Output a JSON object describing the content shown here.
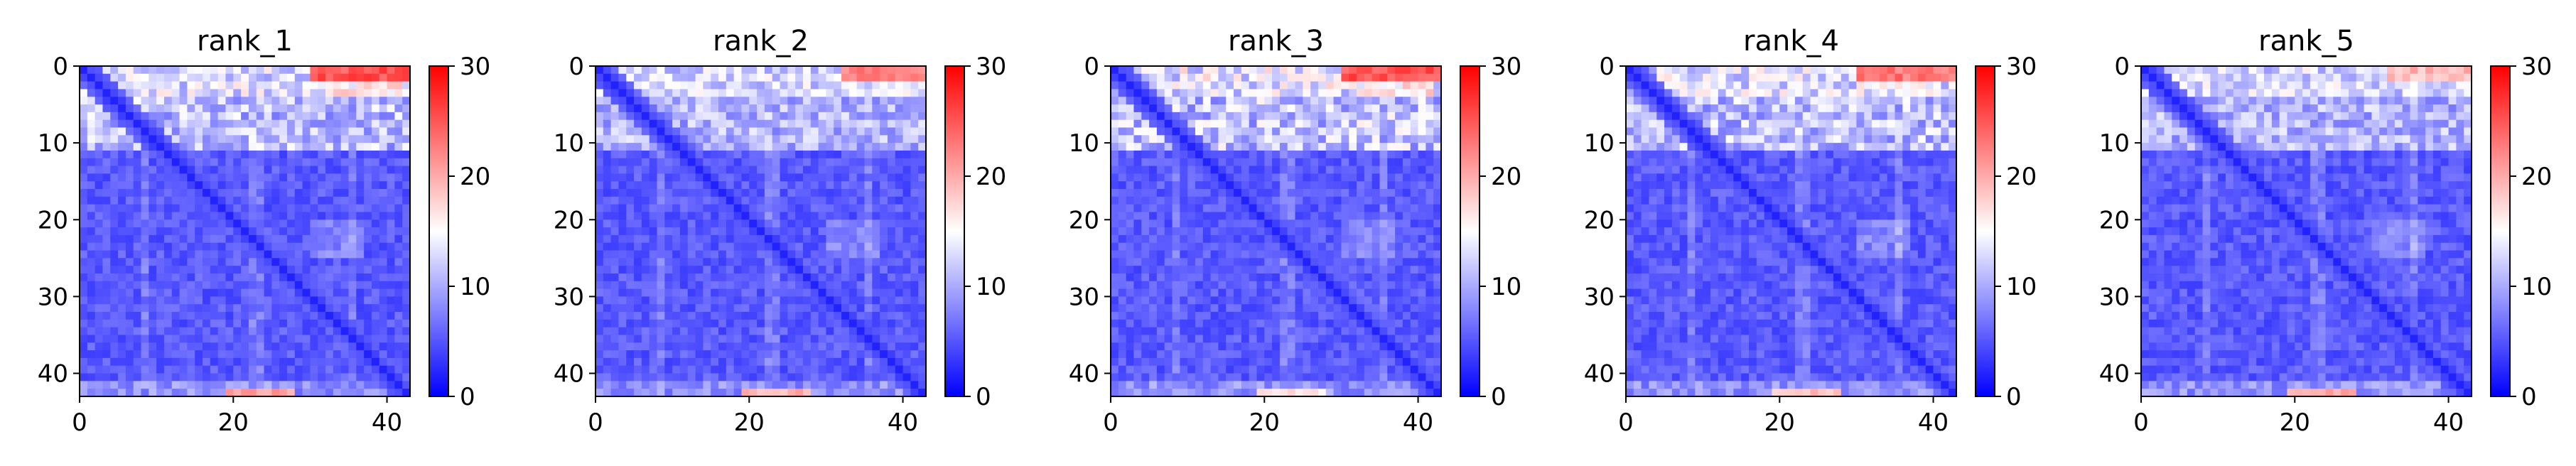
{
  "chart_data": [
    {
      "type": "heatmap",
      "title": "rank_1",
      "grid_size": 43,
      "xlim": [
        0,
        43
      ],
      "ylim": [
        43,
        0
      ],
      "xticks": [
        0,
        20,
        40
      ],
      "yticks": [
        0,
        10,
        20,
        30,
        40
      ],
      "colorbar": {
        "min": 0,
        "max": 30,
        "ticks": [
          0,
          10,
          20,
          30
        ],
        "colormap": "bwr"
      },
      "pattern": {
        "diagonal_value": 2,
        "band_value": 15,
        "top_hot_value": 27,
        "top_hot_columns": [
          30,
          43
        ],
        "bottom_hot_value": 22,
        "bottom_hot_columns": [
          19,
          27
        ]
      }
    },
    {
      "type": "heatmap",
      "title": "rank_2",
      "grid_size": 43,
      "xlim": [
        0,
        43
      ],
      "ylim": [
        43,
        0
      ],
      "xticks": [
        0,
        20,
        40
      ],
      "yticks": [
        0,
        10,
        20,
        30,
        40
      ],
      "colorbar": {
        "min": 0,
        "max": 30,
        "ticks": [
          0,
          10,
          20,
          30
        ],
        "colormap": "bwr"
      },
      "pattern": {
        "diagonal_value": 2,
        "band_value": 14,
        "top_hot_value": 24,
        "top_hot_columns": [
          32,
          43
        ],
        "bottom_hot_value": 21,
        "bottom_hot_columns": [
          19,
          27
        ]
      }
    },
    {
      "type": "heatmap",
      "title": "rank_3",
      "grid_size": 43,
      "xlim": [
        0,
        43
      ],
      "ylim": [
        43,
        0
      ],
      "xticks": [
        0,
        20,
        40
      ],
      "yticks": [
        0,
        10,
        20,
        30,
        40
      ],
      "colorbar": {
        "min": 0,
        "max": 30,
        "ticks": [
          0,
          10,
          20,
          30
        ],
        "colormap": "bwr"
      },
      "pattern": {
        "diagonal_value": 2,
        "band_value": 16,
        "top_hot_value": 27,
        "top_hot_columns": [
          30,
          43
        ],
        "bottom_hot_value": 18,
        "bottom_hot_columns": [
          19,
          27
        ]
      }
    },
    {
      "type": "heatmap",
      "title": "rank_4",
      "grid_size": 43,
      "xlim": [
        0,
        43
      ],
      "ylim": [
        43,
        0
      ],
      "xticks": [
        0,
        20,
        40
      ],
      "yticks": [
        0,
        10,
        20,
        30,
        40
      ],
      "colorbar": {
        "min": 0,
        "max": 30,
        "ticks": [
          0,
          10,
          20,
          30
        ],
        "colormap": "bwr"
      },
      "pattern": {
        "diagonal_value": 2,
        "band_value": 15,
        "top_hot_value": 25,
        "top_hot_columns": [
          30,
          42
        ],
        "bottom_hot_value": 20,
        "bottom_hot_columns": [
          19,
          27
        ]
      }
    },
    {
      "type": "heatmap",
      "title": "rank_5",
      "grid_size": 43,
      "xlim": [
        0,
        43
      ],
      "ylim": [
        43,
        0
      ],
      "xticks": [
        0,
        20,
        40
      ],
      "yticks": [
        0,
        10,
        20,
        30,
        40
      ],
      "colorbar": {
        "min": 0,
        "max": 30,
        "ticks": [
          0,
          10,
          20,
          30
        ],
        "colormap": "bwr"
      },
      "pattern": {
        "diagonal_value": 2,
        "band_value": 14,
        "top_hot_value": 21,
        "top_hot_columns": [
          32,
          43
        ],
        "bottom_hot_value": 22,
        "bottom_hot_columns": [
          19,
          27
        ]
      }
    }
  ]
}
